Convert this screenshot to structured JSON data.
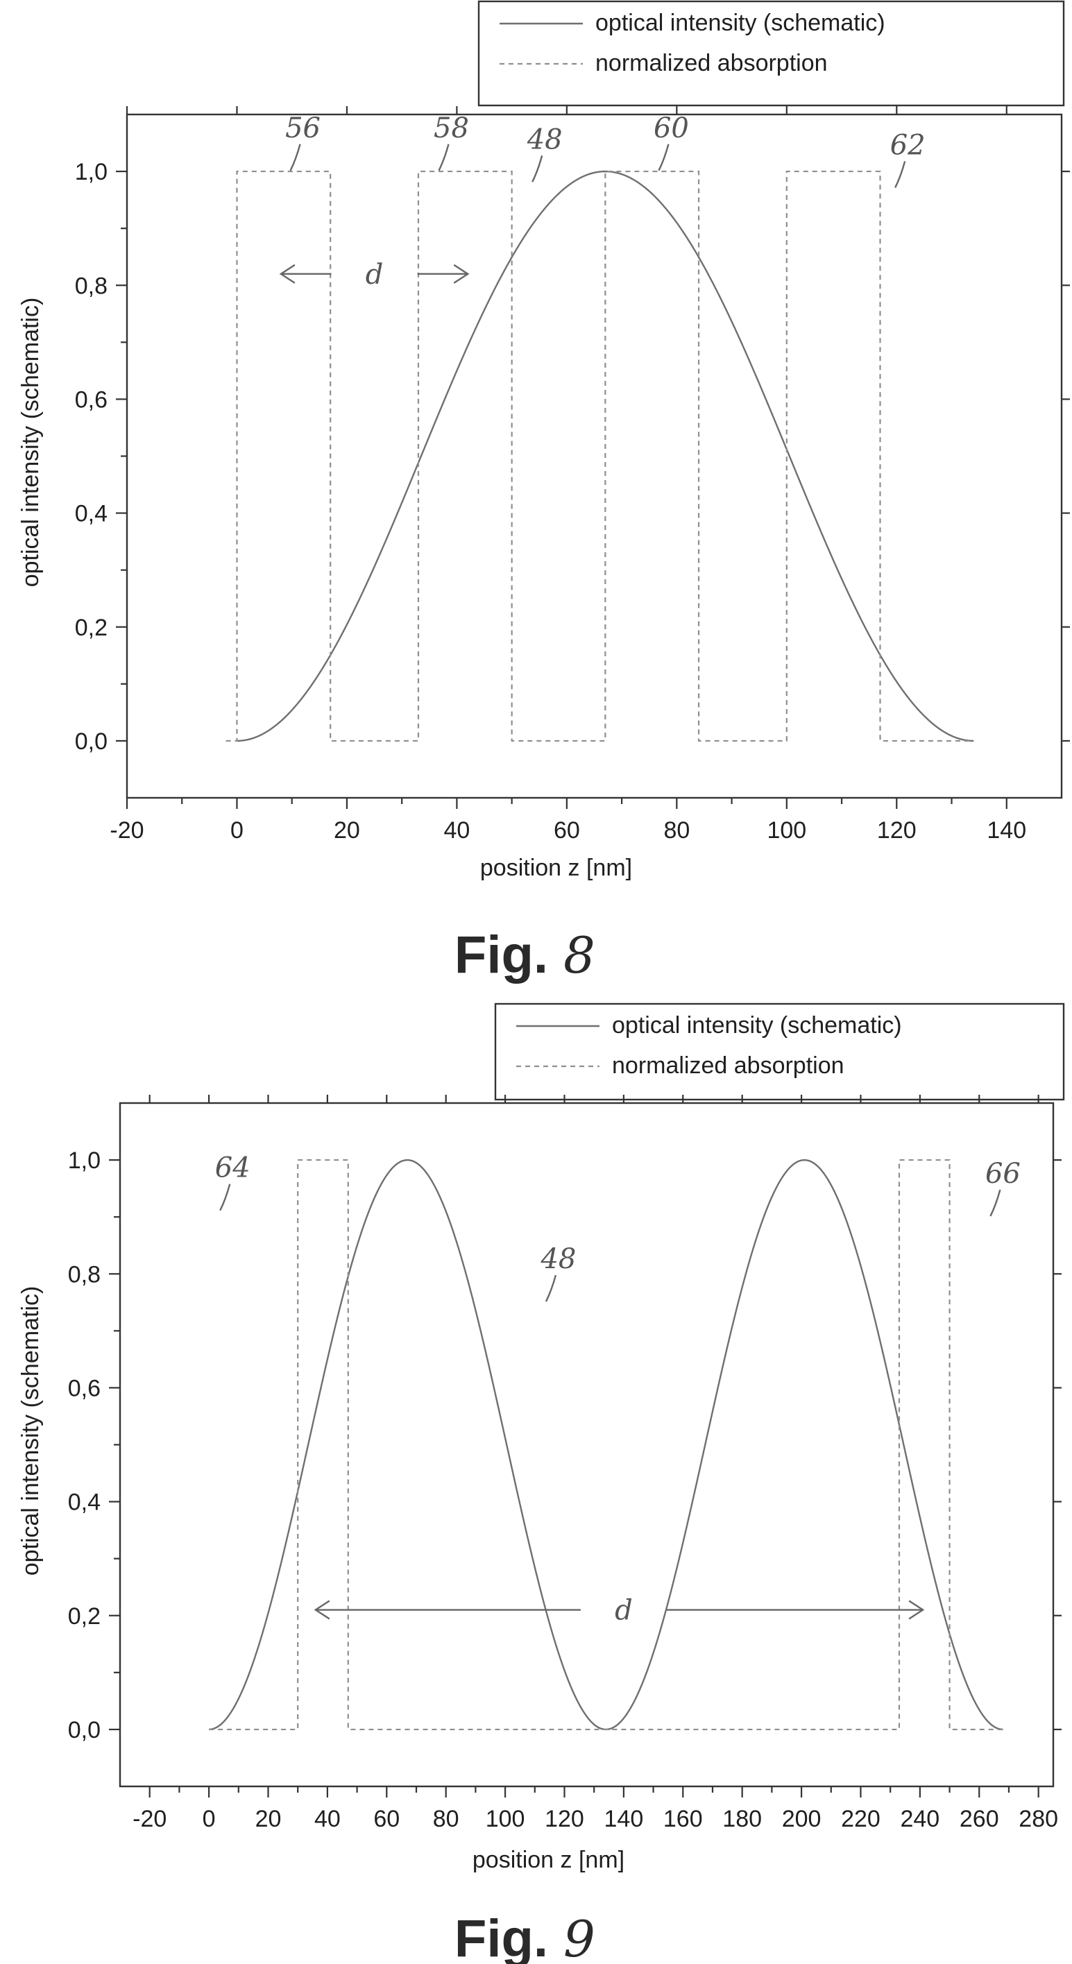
{
  "chart_data": [
    {
      "type": "line",
      "figure_label": "Fig.",
      "figure_number": "8",
      "xlabel": "position z [nm]",
      "ylabel": "optical intensity (schematic)",
      "xlim": [
        -20,
        150
      ],
      "ylim": [
        -0.1,
        1.1
      ],
      "x_ticks": [
        -20,
        0,
        20,
        40,
        60,
        80,
        100,
        120,
        140
      ],
      "x_tick_labels": [
        "-20",
        "0",
        "20",
        "40",
        "60",
        "80",
        "100",
        "120",
        "140"
      ],
      "y_ticks": [
        0.0,
        0.2,
        0.4,
        0.6,
        0.8,
        1.0
      ],
      "y_tick_labels": [
        "0,0",
        "0,2",
        "0,4",
        "0,6",
        "0,8",
        "1,0"
      ],
      "legend": {
        "position": "top-right",
        "entries": [
          {
            "name": "optical intensity (schematic)",
            "style": "solid"
          },
          {
            "name": "normalized absorption",
            "style": "dashed"
          }
        ]
      },
      "series": [
        {
          "name": "optical intensity (schematic)",
          "style": "solid",
          "function": "sin^2",
          "x_range": [
            0,
            134
          ],
          "period_nm": 268,
          "peak": {
            "x": 67,
            "y": 1.0
          }
        },
        {
          "name": "normalized absorption",
          "style": "dashed",
          "x": [
            -2,
            0,
            0,
            17,
            17,
            33,
            33,
            50,
            50,
            67,
            67,
            84,
            84,
            100,
            100,
            117,
            117,
            134
          ],
          "y": [
            0,
            0,
            1,
            1,
            0,
            0,
            1,
            1,
            0,
            0,
            1,
            1,
            0,
            0,
            1,
            1,
            0,
            0
          ]
        }
      ],
      "annotations": [
        {
          "text": "56",
          "x": 12,
          "y": 1.06
        },
        {
          "text": "58",
          "x": 39,
          "y": 1.06
        },
        {
          "text": "48",
          "x": 56,
          "y": 1.04
        },
        {
          "text": "60",
          "x": 79,
          "y": 1.06
        },
        {
          "text": "62",
          "x": 122,
          "y": 1.03
        },
        {
          "text": "d",
          "x": 25,
          "y": 0.82,
          "arrow_from": 8,
          "arrow_to": 42
        }
      ]
    },
    {
      "type": "line",
      "figure_label": "Fig.",
      "figure_number": "9",
      "xlabel": "position z [nm]",
      "ylabel": "optical intensity (schematic)",
      "xlim": [
        -30,
        285
      ],
      "ylim": [
        -0.1,
        1.1
      ],
      "x_ticks": [
        -20,
        0,
        20,
        40,
        60,
        80,
        100,
        120,
        140,
        160,
        180,
        200,
        220,
        240,
        260,
        280
      ],
      "x_tick_labels": [
        "-20",
        "0",
        "20",
        "40",
        "60",
        "80",
        "100",
        "120",
        "140",
        "160",
        "180",
        "200",
        "220",
        "240",
        "260",
        "280"
      ],
      "y_ticks": [
        0.0,
        0.2,
        0.4,
        0.6,
        0.8,
        1.0
      ],
      "y_tick_labels": [
        "0,0",
        "0,2",
        "0,4",
        "0,6",
        "0,8",
        "1,0"
      ],
      "legend": {
        "position": "top-right",
        "entries": [
          {
            "name": "optical intensity (schematic)",
            "style": "solid"
          },
          {
            "name": "normalized absorption",
            "style": "dashed"
          }
        ]
      },
      "series": [
        {
          "name": "optical intensity (schematic)",
          "style": "solid",
          "function": "sin^2",
          "x_range": [
            0,
            268
          ],
          "period_nm": 268,
          "peaks": [
            {
              "x": 67,
              "y": 1.0
            },
            {
              "x": 201,
              "y": 1.0
            }
          ]
        },
        {
          "name": "normalized absorption",
          "style": "dashed",
          "x": [
            0,
            30,
            30,
            47,
            47,
            233,
            233,
            250,
            250,
            268
          ],
          "y": [
            0,
            0,
            1,
            1,
            0,
            0,
            1,
            1,
            0,
            0
          ]
        }
      ],
      "annotations": [
        {
          "text": "64",
          "x": 8,
          "y": 0.97
        },
        {
          "text": "48",
          "x": 118,
          "y": 0.81
        },
        {
          "text": "66",
          "x": 268,
          "y": 0.96
        },
        {
          "text": "d",
          "x": 140,
          "y": 0.21,
          "arrow_from": 36,
          "arrow_to": 241
        }
      ]
    }
  ]
}
